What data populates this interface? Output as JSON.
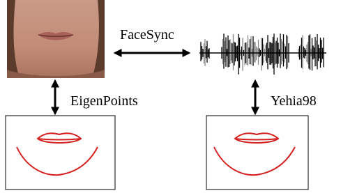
{
  "edges": [
    {
      "label": "FaceSync"
    },
    {
      "label": "EigenPoints"
    },
    {
      "label": "Yehia98"
    }
  ]
}
